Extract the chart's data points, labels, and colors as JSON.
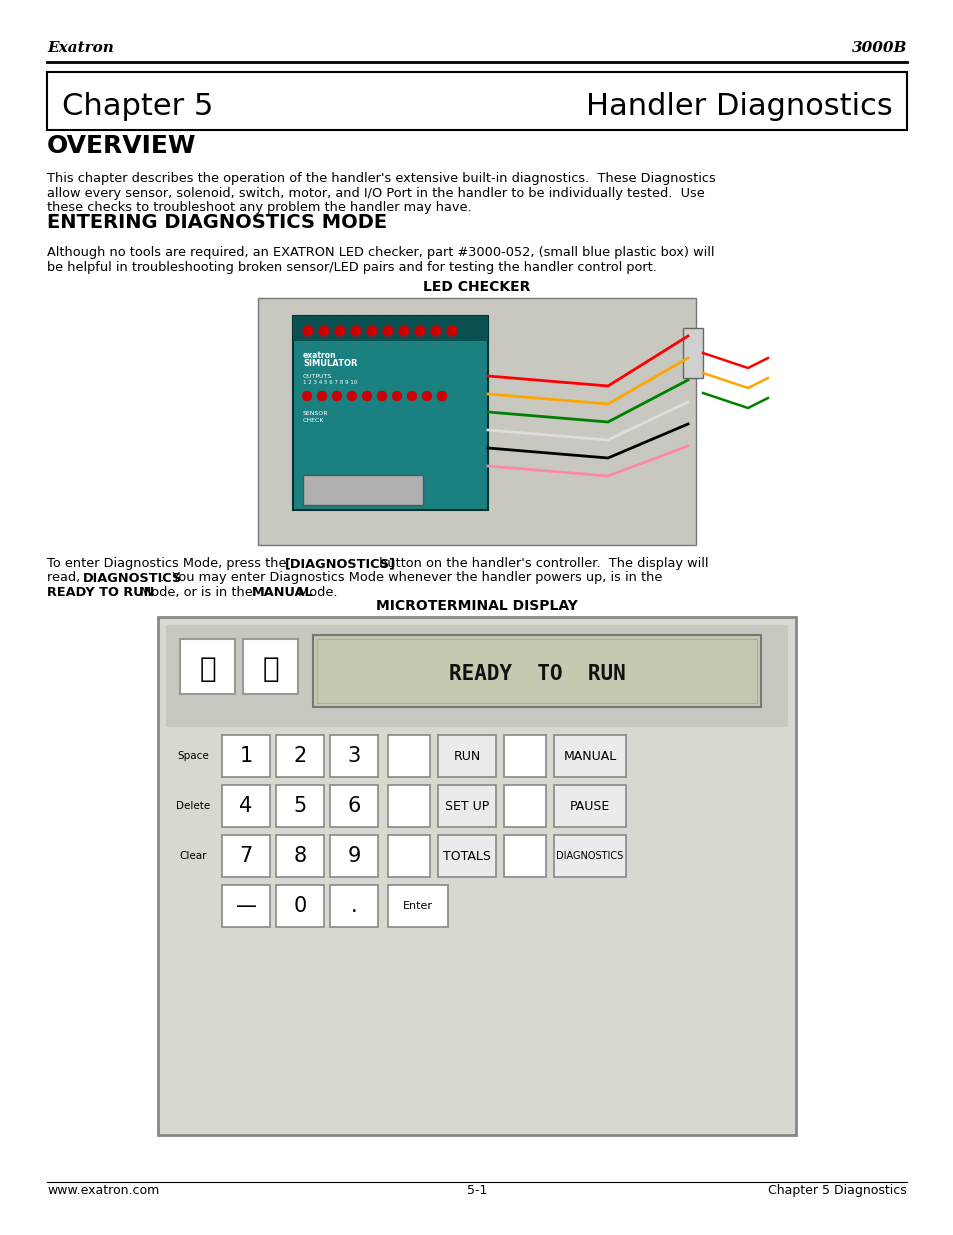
{
  "bg_color": "#ffffff",
  "header_left": "Exatron",
  "header_right": "3000B",
  "chapter_box_text_left": "Chapter 5",
  "chapter_box_text_right": "Handler Diagnostics",
  "section1_title": "OVERVIEW",
  "section1_body_line1": "This chapter describes the operation of the handler's extensive built-in diagnostics.  These Diagnostics",
  "section1_body_line2": "allow every sensor, solenoid, switch, motor, and I/O Port in the handler to be individually tested.  Use",
  "section1_body_line3": "these checks to troubleshoot any problem the handler may have.",
  "section2_title": "ENTERING DIAGNOSTICS MODE",
  "section2_body_line1": "Although no tools are required, an EXATRON LED checker, part #3000-052, (small blue plastic box) will",
  "section2_body_line2": "be helpful in troubleshooting broken sensor/LED pairs and for testing the handler control port.",
  "led_checker_label": "LED CHECKER",
  "microterminal_label": "MICROTERMINAL DISPLAY",
  "footer_left": "www.exatron.com",
  "footer_center": "5-1",
  "footer_right": "Chapter 5 Diagnostics",
  "text_color": "#000000",
  "border_color": "#000000",
  "gray_bg": "#c8c8c0",
  "device_teal": "#1a8080",
  "keypad_bg": "#d8d8d0",
  "keypad_border": "#999999",
  "lcd_bg": "#c8c8b0",
  "key_face": "#ffffff",
  "key_border": "#888888"
}
